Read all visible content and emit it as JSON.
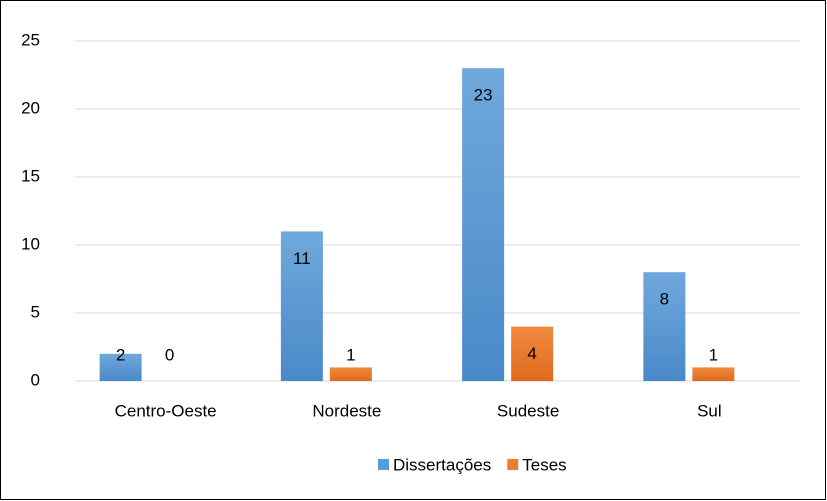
{
  "chart_data": {
    "type": "bar",
    "categories": [
      "Centro-Oeste",
      "Nordeste",
      "Sudeste",
      "Sul"
    ],
    "series": [
      {
        "name": "Dissertações",
        "color": "#5b9bd5",
        "values": [
          2,
          11,
          23,
          8
        ]
      },
      {
        "name": "Teses",
        "color": "#ed7d31",
        "values": [
          0,
          1,
          4,
          1
        ]
      }
    ],
    "ylim": [
      0,
      25
    ],
    "yticks": [
      0,
      5,
      10,
      15,
      20,
      25
    ],
    "grid": true,
    "legend": "bottom"
  }
}
